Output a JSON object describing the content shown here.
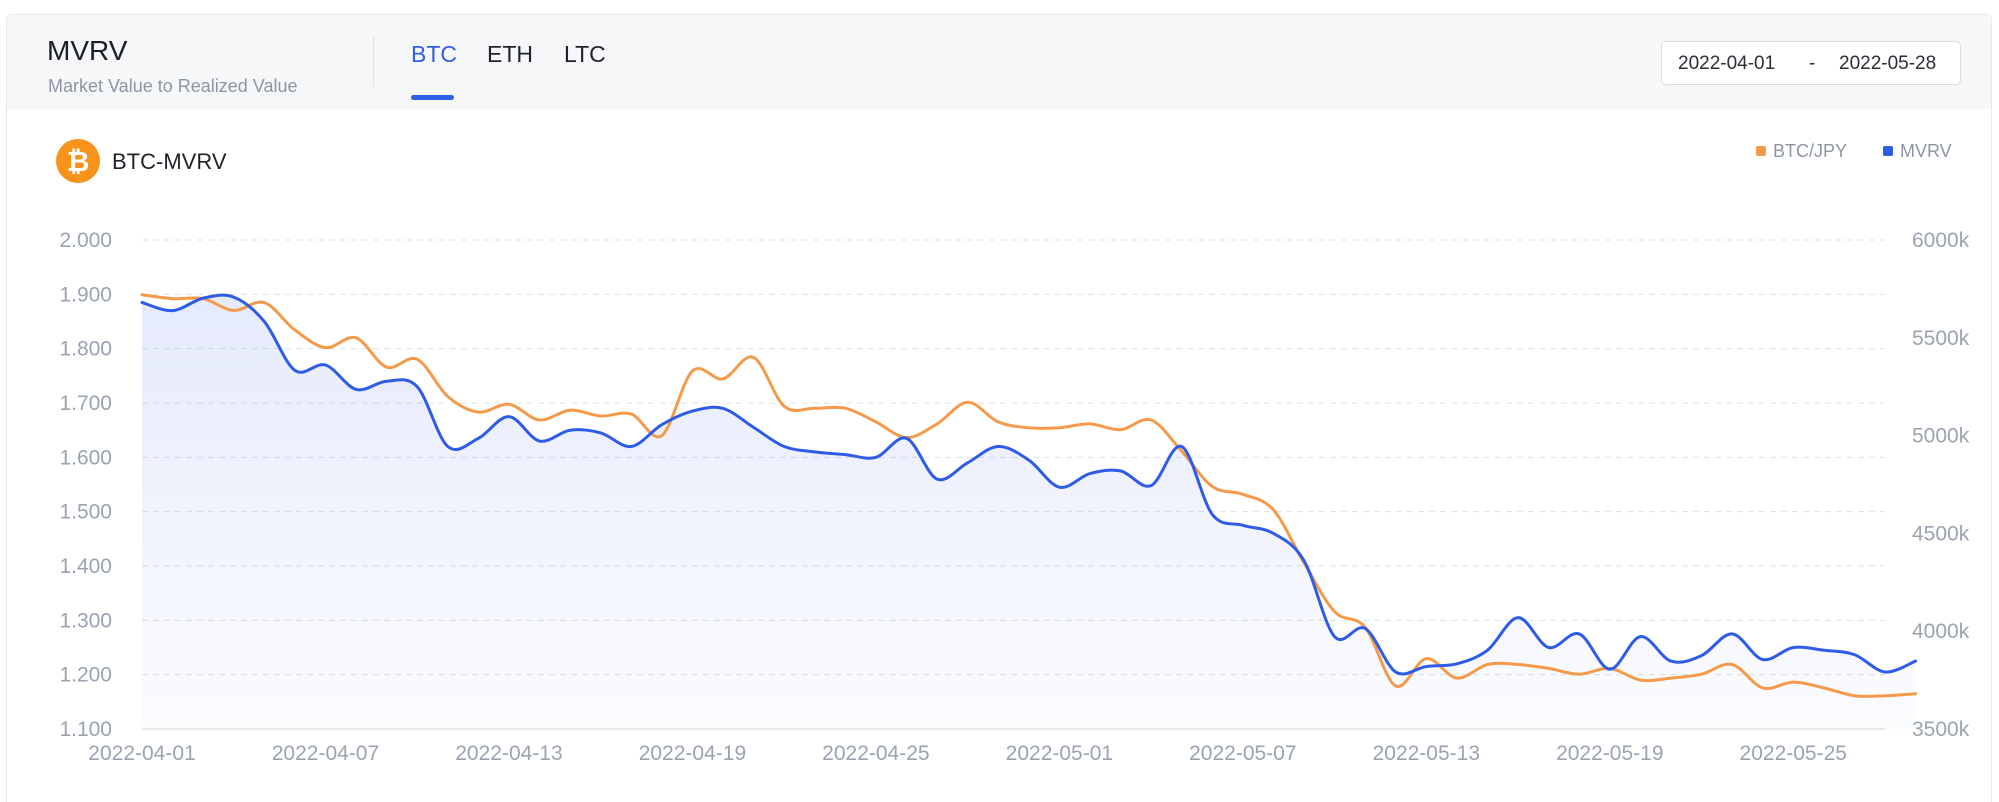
{
  "header": {
    "title": "MVRV",
    "subtitle": "Market Value to Realized Value",
    "tabs": [
      {
        "label": "BTC",
        "active": true
      },
      {
        "label": "ETH",
        "active": false
      },
      {
        "label": "LTC",
        "active": false
      }
    ],
    "date_range": {
      "start": "2022-04-01",
      "separator": "-",
      "end": "2022-05-28"
    }
  },
  "chart_header": {
    "coin_icon": "bitcoin-icon",
    "coin_symbol": "₿",
    "label": "BTC-MVRV"
  },
  "colors": {
    "accent": "#2f5fe6",
    "btc_jpy": "#f59a4a",
    "mvrv": "#2e5ce6",
    "bitcoin": "#f7931a"
  },
  "chart_data": {
    "type": "line",
    "x_ticks": [
      "2022-04-01",
      "2022-04-07",
      "2022-04-13",
      "2022-04-19",
      "2022-04-25",
      "2022-05-01",
      "2022-05-07",
      "2022-05-13",
      "2022-05-19",
      "2022-05-25"
    ],
    "x_range": [
      "2022-04-01",
      "2022-05-28"
    ],
    "y_left": {
      "ticks": [
        "1.100",
        "1.200",
        "1.300",
        "1.400",
        "1.500",
        "1.600",
        "1.700",
        "1.800",
        "1.900",
        "2.000"
      ],
      "range": [
        1.1,
        2.0
      ]
    },
    "y_right": {
      "ticks": [
        "3500k",
        "4000k",
        "4500k",
        "5000k",
        "5500k",
        "6000k"
      ],
      "range": [
        3500,
        6000
      ],
      "unit": "k"
    },
    "grid": true,
    "legend_position": "top-right",
    "legend": [
      "BTC/JPY",
      "MVRV"
    ],
    "series": [
      {
        "name": "MVRV",
        "axis": "left",
        "area_fill": true,
        "points": [
          [
            "2022-04-01",
            1.885
          ],
          [
            "2022-04-02",
            1.87
          ],
          [
            "2022-04-03",
            1.893
          ],
          [
            "2022-04-04",
            1.895
          ],
          [
            "2022-04-05",
            1.85
          ],
          [
            "2022-04-06",
            1.76
          ],
          [
            "2022-04-07",
            1.77
          ],
          [
            "2022-04-08",
            1.725
          ],
          [
            "2022-04-09",
            1.74
          ],
          [
            "2022-04-10",
            1.73
          ],
          [
            "2022-04-11",
            1.62
          ],
          [
            "2022-04-12",
            1.635
          ],
          [
            "2022-04-13",
            1.675
          ],
          [
            "2022-04-14",
            1.63
          ],
          [
            "2022-04-15",
            1.65
          ],
          [
            "2022-04-16",
            1.645
          ],
          [
            "2022-04-17",
            1.62
          ],
          [
            "2022-04-18",
            1.66
          ],
          [
            "2022-04-19",
            1.685
          ],
          [
            "2022-04-20",
            1.69
          ],
          [
            "2022-04-21",
            1.655
          ],
          [
            "2022-04-22",
            1.62
          ],
          [
            "2022-04-23",
            1.61
          ],
          [
            "2022-04-24",
            1.605
          ],
          [
            "2022-04-25",
            1.6
          ],
          [
            "2022-04-26",
            1.635
          ],
          [
            "2022-04-27",
            1.56
          ],
          [
            "2022-04-28",
            1.59
          ],
          [
            "2022-04-29",
            1.62
          ],
          [
            "2022-04-30",
            1.595
          ],
          [
            "2022-05-01",
            1.545
          ],
          [
            "2022-05-02",
            1.57
          ],
          [
            "2022-05-03",
            1.575
          ],
          [
            "2022-05-04",
            1.548
          ],
          [
            "2022-05-05",
            1.62
          ],
          [
            "2022-05-06",
            1.495
          ],
          [
            "2022-05-07",
            1.475
          ],
          [
            "2022-05-08",
            1.46
          ],
          [
            "2022-05-09",
            1.41
          ],
          [
            "2022-05-10",
            1.27
          ],
          [
            "2022-05-11",
            1.285
          ],
          [
            "2022-05-12",
            1.205
          ],
          [
            "2022-05-13",
            1.215
          ],
          [
            "2022-05-14",
            1.22
          ],
          [
            "2022-05-15",
            1.245
          ],
          [
            "2022-05-16",
            1.305
          ],
          [
            "2022-05-17",
            1.25
          ],
          [
            "2022-05-18",
            1.275
          ],
          [
            "2022-05-19",
            1.21
          ],
          [
            "2022-05-20",
            1.27
          ],
          [
            "2022-05-21",
            1.225
          ],
          [
            "2022-05-22",
            1.235
          ],
          [
            "2022-05-23",
            1.275
          ],
          [
            "2022-05-24",
            1.228
          ],
          [
            "2022-05-25",
            1.25
          ],
          [
            "2022-05-26",
            1.245
          ],
          [
            "2022-05-27",
            1.237
          ],
          [
            "2022-05-28",
            1.205
          ],
          [
            "2022-05-29",
            1.225
          ]
        ]
      },
      {
        "name": "BTC/JPY",
        "axis": "right",
        "points": [
          [
            "2022-04-01",
            5720
          ],
          [
            "2022-04-02",
            5700
          ],
          [
            "2022-04-03",
            5700
          ],
          [
            "2022-04-04",
            5640
          ],
          [
            "2022-04-05",
            5680
          ],
          [
            "2022-04-06",
            5540
          ],
          [
            "2022-04-07",
            5450
          ],
          [
            "2022-04-08",
            5500
          ],
          [
            "2022-04-09",
            5350
          ],
          [
            "2022-04-10",
            5390
          ],
          [
            "2022-04-11",
            5200
          ],
          [
            "2022-04-12",
            5120
          ],
          [
            "2022-04-13",
            5160
          ],
          [
            "2022-04-14",
            5080
          ],
          [
            "2022-04-15",
            5130
          ],
          [
            "2022-04-16",
            5100
          ],
          [
            "2022-04-17",
            5110
          ],
          [
            "2022-04-18",
            5000
          ],
          [
            "2022-04-19",
            5330
          ],
          [
            "2022-04-20",
            5290
          ],
          [
            "2022-04-21",
            5400
          ],
          [
            "2022-04-22",
            5150
          ],
          [
            "2022-04-23",
            5140
          ],
          [
            "2022-04-24",
            5140
          ],
          [
            "2022-04-25",
            5070
          ],
          [
            "2022-04-26",
            4990
          ],
          [
            "2022-04-27",
            5060
          ],
          [
            "2022-04-28",
            5170
          ],
          [
            "2022-04-29",
            5070
          ],
          [
            "2022-04-30",
            5040
          ],
          [
            "2022-05-01",
            5040
          ],
          [
            "2022-05-02",
            5060
          ],
          [
            "2022-05-03",
            5030
          ],
          [
            "2022-05-04",
            5080
          ],
          [
            "2022-05-05",
            4920
          ],
          [
            "2022-05-06",
            4740
          ],
          [
            "2022-05-07",
            4700
          ],
          [
            "2022-05-08",
            4620
          ],
          [
            "2022-05-09",
            4350
          ],
          [
            "2022-05-10",
            4100
          ],
          [
            "2022-05-11",
            4020
          ],
          [
            "2022-05-12",
            3720
          ],
          [
            "2022-05-13",
            3860
          ],
          [
            "2022-05-14",
            3760
          ],
          [
            "2022-05-15",
            3830
          ],
          [
            "2022-05-16",
            3830
          ],
          [
            "2022-05-17",
            3810
          ],
          [
            "2022-05-18",
            3780
          ],
          [
            "2022-05-19",
            3810
          ],
          [
            "2022-05-20",
            3750
          ],
          [
            "2022-05-21",
            3760
          ],
          [
            "2022-05-22",
            3780
          ],
          [
            "2022-05-23",
            3830
          ],
          [
            "2022-05-24",
            3710
          ],
          [
            "2022-05-25",
            3740
          ],
          [
            "2022-05-26",
            3710
          ],
          [
            "2022-05-27",
            3670
          ],
          [
            "2022-05-28",
            3670
          ],
          [
            "2022-05-29",
            3680
          ]
        ]
      }
    ]
  }
}
